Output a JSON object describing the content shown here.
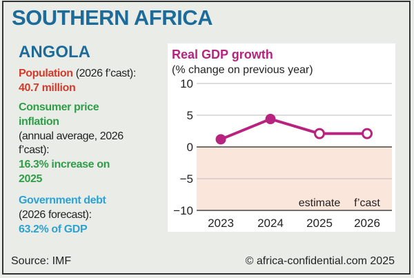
{
  "header": {
    "title": "SOUTHERN AFRICA"
  },
  "country": "ANGOLA",
  "stats": {
    "population": {
      "label": "Population",
      "qualifier": "(2026 f’cast):",
      "value": "40.7 million",
      "color": "#d43a2a"
    },
    "inflation": {
      "label_line1": "Consumer price",
      "label_line2": "inflation",
      "qualifier_line1": "(annual average, 2026",
      "qualifier_line2": "f’cast):",
      "value_line1": "16.3% increase on",
      "value_line2": "2025",
      "color": "#2f9e48"
    },
    "debt": {
      "label": "Government debt",
      "qualifier": "(2026 forecast):",
      "value": "63.2% of GDP",
      "color": "#2aa3d3"
    }
  },
  "footer": {
    "source": "Source: IMF",
    "credit": "© africa-confidential.com 2025"
  },
  "chart_data": {
    "type": "line",
    "title": "Real GDP growth",
    "subtitle": "(% change on previous year)",
    "categories": [
      "2023",
      "2024",
      "2025",
      "2026"
    ],
    "series": [
      {
        "values": [
          1.2,
          4.4,
          2.1,
          2.1
        ],
        "filled": [
          true,
          true,
          false,
          false
        ],
        "color": "#b8237f"
      }
    ],
    "ylim": [
      -10,
      10
    ],
    "yticks": [
      10,
      5,
      0,
      -5,
      -10
    ],
    "ytick_labels": [
      "10",
      "5",
      "0",
      "−5",
      "−10"
    ],
    "annotations": [
      {
        "x": "2025",
        "text": "estimate"
      },
      {
        "x": "2026",
        "text": "f’cast"
      }
    ],
    "negative_region_color": "#fbe6dc",
    "grid": true
  }
}
